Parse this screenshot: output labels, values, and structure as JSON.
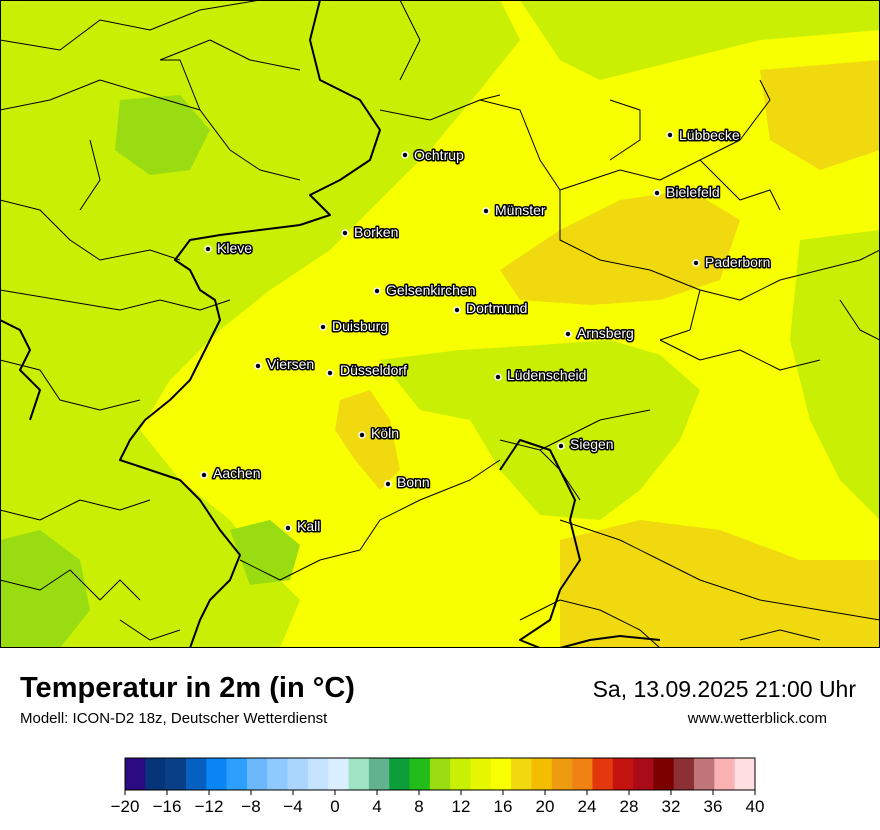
{
  "title": "Temperatur in 2m (in °C)",
  "model_info": "Modell: ICON-D2 18z, Deutscher Wetterdienst",
  "datetime": "Sa, 13.09.2025 21:00 Uhr",
  "website": "www.wetterblick.com",
  "cities": [
    {
      "name": "Lübbecke"
    },
    {
      "name": "Ochtrup"
    },
    {
      "name": "Bielefeld"
    },
    {
      "name": "Münster"
    },
    {
      "name": "Borken"
    },
    {
      "name": "Kleve"
    },
    {
      "name": "Paderborn"
    },
    {
      "name": "Gelsenkirchen"
    },
    {
      "name": "Dortmund"
    },
    {
      "name": "Duisburg"
    },
    {
      "name": "Arnsberg"
    },
    {
      "name": "Viersen"
    },
    {
      "name": "Düsseldorf"
    },
    {
      "name": "Lüdenscheid"
    },
    {
      "name": "Köln"
    },
    {
      "name": "Siegen"
    },
    {
      "name": "Aachen"
    },
    {
      "name": "Bonn"
    },
    {
      "name": "Kall"
    }
  ],
  "legend": {
    "ticks": [
      "−20",
      "−16",
      "−12",
      "−8",
      "−4",
      "0",
      "4",
      "8",
      "12",
      "16",
      "20",
      "24",
      "28",
      "32",
      "36",
      "40"
    ],
    "colors": [
      "#2c0a82",
      "#06347a",
      "#083f86",
      "#0560c2",
      "#0a85f5",
      "#2da0ff",
      "#6cb8fd",
      "#8fcaff",
      "#aad6fe",
      "#c5e3fe",
      "#dbeeff",
      "#9ee3c3",
      "#62b28f",
      "#0b9e3b",
      "#22bd1a",
      "#99dc11",
      "#c9ef04",
      "#e7f701",
      "#f7ff00",
      "#f0da0f",
      "#f3be02",
      "#ef9b11",
      "#f08214",
      "#e5370d",
      "#c5130f",
      "#a90b18",
      "#7b0000",
      "#8d3036",
      "#c17579",
      "#fab2b2",
      "#ffdfe2"
    ]
  },
  "colors": {
    "temp_11": "#99dc11",
    "temp_13": "#c9ef04",
    "temp_15": "#e7f701",
    "temp_17": "#f7ff00",
    "temp_19": "#f0da0f"
  }
}
